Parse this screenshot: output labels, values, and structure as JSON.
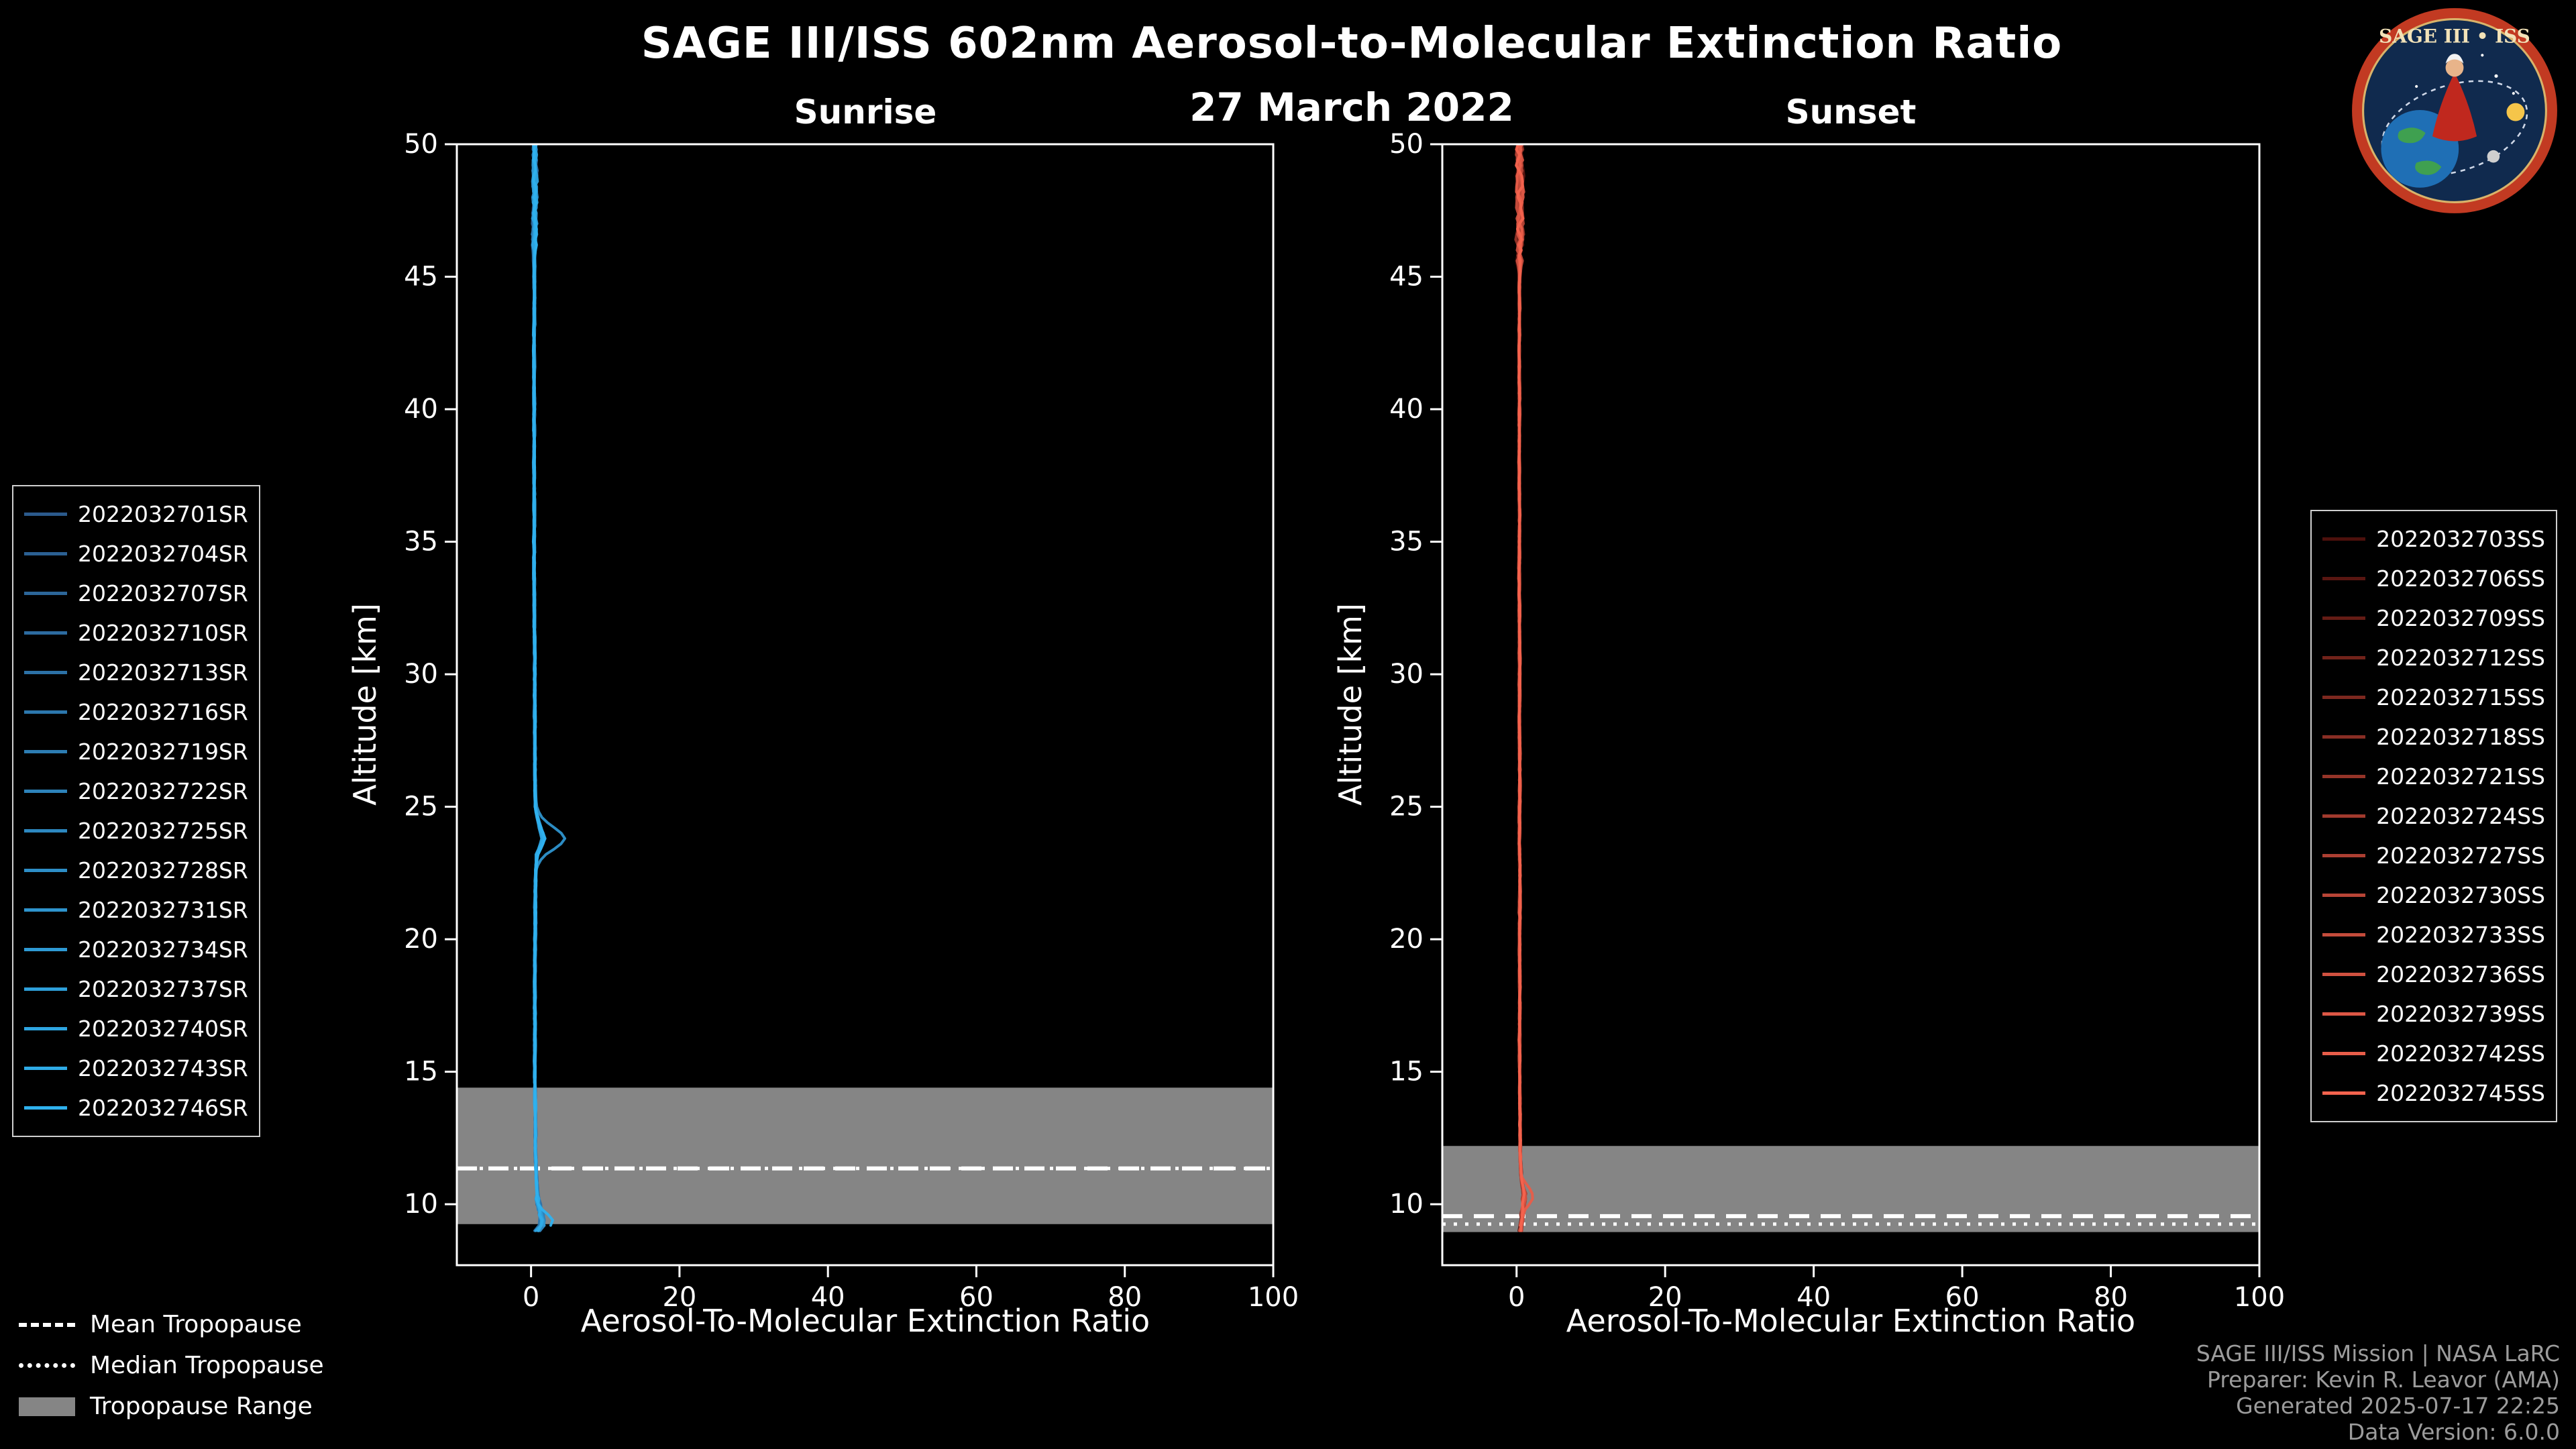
{
  "header": {
    "title": "SAGE III/ISS 602nm Aerosol-to-Molecular Extinction Ratio",
    "date": "27 March 2022"
  },
  "logo": {
    "title": "SAGE III • ISS"
  },
  "colors": {
    "background": "#000000",
    "frame": "#ffffff",
    "band": "#858585",
    "tropopause_line": "#ffffff",
    "footer_text": "#9c9c9c"
  },
  "tropopause_legend": {
    "mean": "Mean Tropopause",
    "median": "Median Tropopause",
    "range": "Tropopause Range"
  },
  "footer": {
    "lines": [
      "SAGE III/ISS Mission | NASA LaRC",
      "Preparer: Kevin R. Leavor (AMA)",
      "Generated 2025-07-17 22:25",
      "Data Version: 6.0.0"
    ]
  },
  "chart_data": [
    {
      "panel": "sunrise",
      "type": "line",
      "title": "Sunrise",
      "xlabel": "Aerosol-To-Molecular Extinction Ratio",
      "ylabel": "Altitude [km]",
      "xlim": [
        -10,
        100
      ],
      "ylim": [
        7.7,
        50
      ],
      "xticks": [
        0,
        20,
        40,
        60,
        80,
        100
      ],
      "yticks": [
        10,
        15,
        20,
        25,
        30,
        35,
        40,
        45,
        50
      ],
      "color_start": "#2b5a8c",
      "color_end": "#2fb1ee",
      "series": [
        "2022032701SR",
        "2022032704SR",
        "2022032707SR",
        "2022032710SR",
        "2022032713SR",
        "2022032716SR",
        "2022032719SR",
        "2022032722SR",
        "2022032725SR",
        "2022032728SR",
        "2022032731SR",
        "2022032734SR",
        "2022032737SR",
        "2022032740SR",
        "2022032743SR",
        "2022032746SR"
      ],
      "tropopause": {
        "mean_km": 11.35,
        "median_km": 11.35,
        "range_km": [
          9.25,
          14.4
        ]
      },
      "profile_base": {
        "alt": [
          50,
          48,
          46,
          44,
          42,
          40,
          38,
          36,
          34,
          32,
          30,
          28,
          26,
          25,
          24.2,
          23.8,
          23.2,
          22,
          20,
          18,
          16,
          14,
          12,
          11,
          10.2,
          9.6,
          9.2,
          8.85
        ],
        "value": [
          0.5,
          0.5,
          0.45,
          0.45,
          0.4,
          0.45,
          0.4,
          0.45,
          0.4,
          0.45,
          0.5,
          0.5,
          0.55,
          0.6,
          1.1,
          1.5,
          0.7,
          0.6,
          0.55,
          0.5,
          0.5,
          0.55,
          0.6,
          0.7,
          0.9,
          1.2,
          1.3,
          0.5
        ]
      },
      "noise": {
        "amp": 0.16,
        "top_alt": 46,
        "top_amp": 0.5,
        "bot_alt": 10.3,
        "bot_amp": 0.5
      },
      "features": [
        {
          "center_km": 23.8,
          "width_km": 0.45,
          "highlight_index": 10,
          "highlight_gain": 3.0,
          "base_gain": 0.4
        },
        {
          "center_km": 9.35,
          "width_km": 0.28,
          "highlight_index": 15,
          "highlight_gain": 1.9,
          "base_gain": 0.4
        }
      ],
      "end_alt_km": 8.8,
      "seed": 11
    },
    {
      "panel": "sunset",
      "type": "line",
      "title": "Sunset",
      "xlabel": "Aerosol-To-Molecular Extinction Ratio",
      "ylabel": "Altitude [km]",
      "xlim": [
        -10,
        100
      ],
      "ylim": [
        7.7,
        50
      ],
      "xticks": [
        0,
        20,
        40,
        60,
        80,
        100
      ],
      "yticks": [
        10,
        15,
        20,
        25,
        30,
        35,
        40,
        45,
        50
      ],
      "color_start": "#4d100c",
      "color_end": "#f4634e",
      "series": [
        "2022032703SS",
        "2022032706SS",
        "2022032709SS",
        "2022032712SS",
        "2022032715SS",
        "2022032718SS",
        "2022032721SS",
        "2022032724SS",
        "2022032727SS",
        "2022032730SS",
        "2022032733SS",
        "2022032736SS",
        "2022032739SS",
        "2022032742SS",
        "2022032745SS"
      ],
      "tropopause": {
        "mean_km": 9.55,
        "median_km": 9.25,
        "range_km": [
          8.95,
          12.2
        ]
      },
      "profile_base": {
        "alt": [
          50,
          48,
          46,
          44,
          42,
          40,
          38,
          36,
          34,
          32,
          30,
          28,
          26,
          24,
          22,
          20,
          18,
          16,
          14,
          12,
          11,
          10.4,
          9.8,
          9.3,
          8.85
        ],
        "value": [
          0.4,
          0.45,
          0.4,
          0.4,
          0.35,
          0.4,
          0.35,
          0.4,
          0.35,
          0.4,
          0.4,
          0.4,
          0.45,
          0.4,
          0.45,
          0.4,
          0.45,
          0.4,
          0.45,
          0.5,
          0.6,
          0.9,
          0.8,
          0.7,
          0.45
        ]
      },
      "noise": {
        "amp": 0.14,
        "top_alt": 45.5,
        "top_amp": 0.7,
        "bot_alt": 10.5,
        "bot_amp": 0.35
      },
      "features": [
        {
          "center_km": 10.35,
          "width_km": 0.35,
          "highlight_index": 13,
          "highlight_gain": 1.3,
          "base_gain": 0.35
        }
      ],
      "end_alt_km": 8.8,
      "seed": 29
    }
  ]
}
